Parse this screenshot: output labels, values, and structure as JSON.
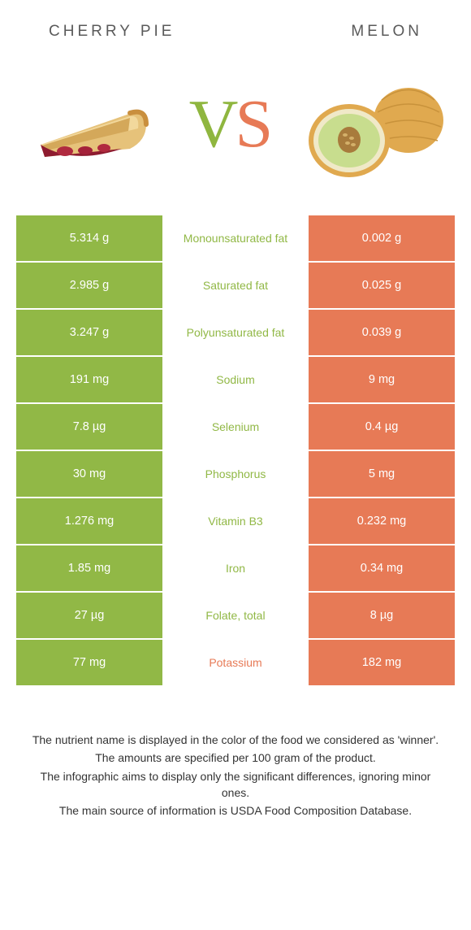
{
  "colors": {
    "green": "#91b846",
    "orange": "#e77a56",
    "mid_bg": "#ffffff"
  },
  "header": {
    "left_title": "CHERRY PIE",
    "right_title": "MELON"
  },
  "vs": {
    "v": "V",
    "s": "S"
  },
  "rows": [
    {
      "left": "5.314 g",
      "label": "Monounsaturated fat",
      "right": "0.002 g",
      "winner": "left"
    },
    {
      "left": "2.985 g",
      "label": "Saturated fat",
      "right": "0.025 g",
      "winner": "left"
    },
    {
      "left": "3.247 g",
      "label": "Polyunsaturated fat",
      "right": "0.039 g",
      "winner": "left"
    },
    {
      "left": "191 mg",
      "label": "Sodium",
      "right": "9 mg",
      "winner": "left"
    },
    {
      "left": "7.8 µg",
      "label": "Selenium",
      "right": "0.4 µg",
      "winner": "left"
    },
    {
      "left": "30 mg",
      "label": "Phosphorus",
      "right": "5 mg",
      "winner": "left"
    },
    {
      "left": "1.276 mg",
      "label": "Vitamin B3",
      "right": "0.232 mg",
      "winner": "left"
    },
    {
      "left": "1.85 mg",
      "label": "Iron",
      "right": "0.34 mg",
      "winner": "left"
    },
    {
      "left": "27 µg",
      "label": "Folate, total",
      "right": "8 µg",
      "winner": "left"
    },
    {
      "left": "77 mg",
      "label": "Potassium",
      "right": "182 mg",
      "winner": "right"
    }
  ],
  "footnotes": {
    "l1": "The nutrient name is displayed in the color of the food we considered as 'winner'.",
    "l2": "The amounts are specified per 100 gram of the product.",
    "l3": "The infographic aims to display only the significant differences, ignoring minor ones.",
    "l4": "The main source of information is USDA Food Composition Database."
  }
}
